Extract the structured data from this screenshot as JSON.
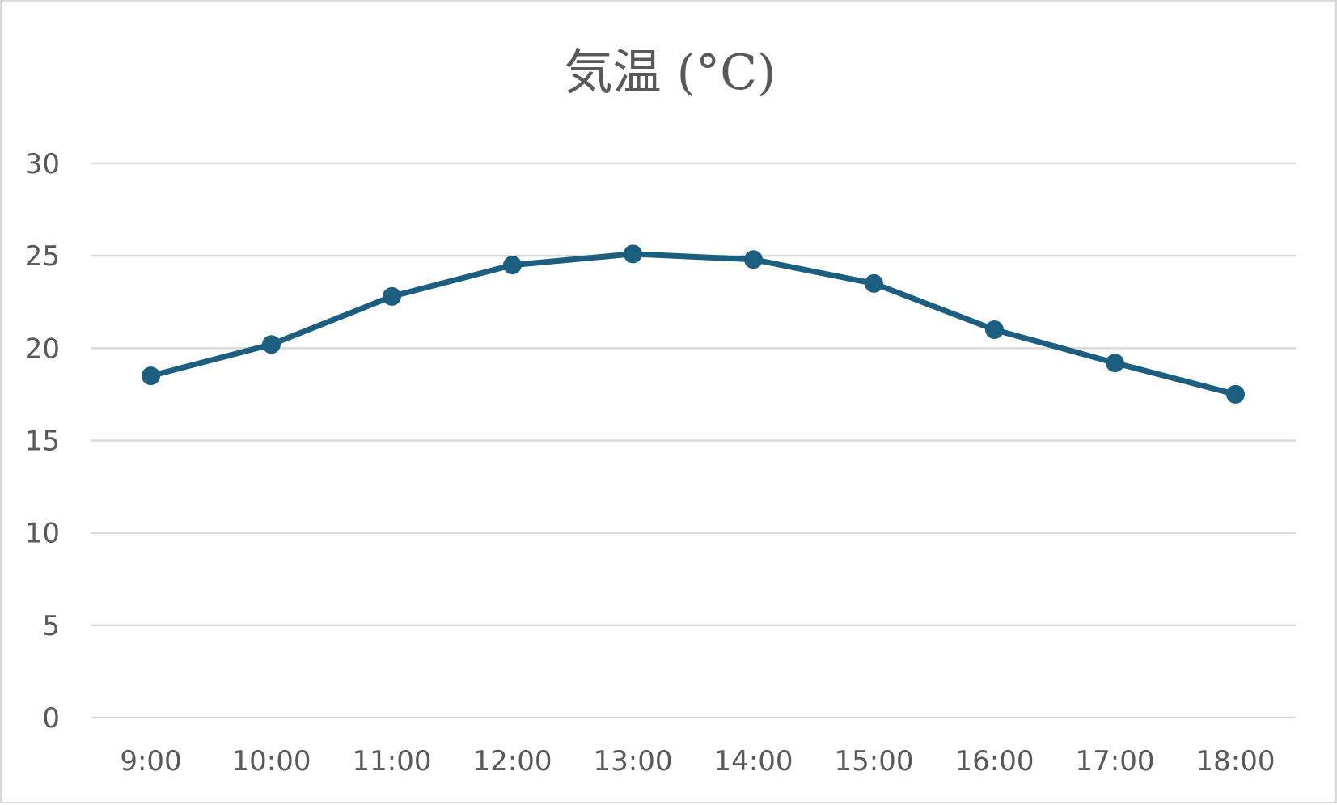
{
  "chart_data": {
    "type": "line",
    "title": "気温 (°C)",
    "categories": [
      "9:00",
      "10:00",
      "11:00",
      "12:00",
      "13:00",
      "14:00",
      "15:00",
      "16:00",
      "17:00",
      "18:00"
    ],
    "series": [
      {
        "values": [
          18.5,
          20.2,
          22.8,
          24.5,
          25.1,
          24.8,
          23.5,
          21.0,
          19.2,
          17.5
        ]
      }
    ],
    "ylim": [
      0,
      30
    ],
    "yticks": [
      0,
      5,
      10,
      15,
      20,
      25,
      30
    ],
    "grid": true,
    "legend": "none",
    "colors": {
      "line": "#1b5e80",
      "grid": "#d9d9d9",
      "text": "#595959"
    }
  }
}
